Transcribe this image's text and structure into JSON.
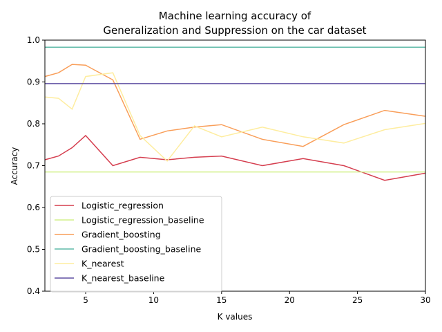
{
  "chart_data": {
    "type": "line",
    "title_line1": "Machine learning accuracy of",
    "title_line2": "Generalization and Suppression on the car dataset",
    "xlabel": "K values",
    "ylabel": "Accuracy",
    "xlim": [
      2,
      30
    ],
    "ylim": [
      0.4,
      1.0
    ],
    "xticks": [
      5,
      10,
      15,
      20,
      25,
      30
    ],
    "yticks": [
      0.4,
      0.5,
      0.6,
      0.7,
      0.8,
      0.9,
      1.0
    ],
    "x": [
      2,
      3,
      4,
      5,
      7,
      9,
      11,
      13,
      15,
      18,
      21,
      24,
      27,
      30
    ],
    "legend_position": "lower-left",
    "grid": false,
    "series": [
      {
        "name": "Logistic_regression",
        "color": "#d53e4f",
        "values": [
          0.714,
          0.723,
          0.743,
          0.772,
          0.7,
          0.72,
          0.714,
          0.72,
          0.723,
          0.7,
          0.717,
          0.7,
          0.665,
          0.682
        ]
      },
      {
        "name": "Logistic_regression_baseline",
        "color": "#d3f08b",
        "values": [
          0.685,
          0.685,
          0.685,
          0.685,
          0.685,
          0.685,
          0.685,
          0.685,
          0.685,
          0.685,
          0.685,
          0.685,
          0.685,
          0.685
        ]
      },
      {
        "name": "Gradient_boosting",
        "color": "#f99e59",
        "values": [
          0.913,
          0.922,
          0.942,
          0.94,
          0.905,
          0.763,
          0.783,
          0.792,
          0.798,
          0.763,
          0.746,
          0.798,
          0.832,
          0.818
        ]
      },
      {
        "name": "Gradient_boosting_baseline",
        "color": "#5fbaa8",
        "values": [
          0.983,
          0.983,
          0.983,
          0.983,
          0.983,
          0.983,
          0.983,
          0.983,
          0.983,
          0.983,
          0.983,
          0.983,
          0.983,
          0.983
        ]
      },
      {
        "name": "K_nearest",
        "color": "#feed9f",
        "values": [
          0.864,
          0.861,
          0.835,
          0.913,
          0.922,
          0.772,
          0.711,
          0.795,
          0.769,
          0.792,
          0.769,
          0.754,
          0.786,
          0.801
        ]
      },
      {
        "name": "K_nearest_baseline",
        "color": "#5e4fa2",
        "values": [
          0.896,
          0.896,
          0.896,
          0.896,
          0.896,
          0.896,
          0.896,
          0.896,
          0.896,
          0.896,
          0.896,
          0.896,
          0.896,
          0.896
        ]
      }
    ]
  }
}
